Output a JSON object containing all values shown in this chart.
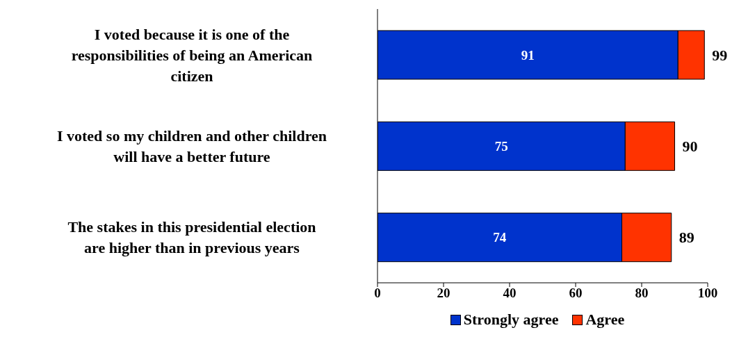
{
  "chart_data": {
    "type": "bar",
    "orientation": "horizontal",
    "stacked": true,
    "categories": [
      "I voted because it is one of the responsibilities of being an American citizen",
      "I voted so my children and other children will have a better future",
      "The stakes in this presidential election are higher than in previous years"
    ],
    "series": [
      {
        "name": "Strongly agree",
        "color": "#0033cc",
        "values": [
          91,
          75,
          74
        ],
        "value_labels": [
          "91",
          "75",
          "74"
        ]
      },
      {
        "name": "Agree",
        "color": "#ff3300",
        "values": [
          8,
          15,
          15
        ]
      }
    ],
    "totals": [
      "99",
      "90",
      "89"
    ],
    "xlim": [
      0,
      100
    ],
    "xticks": [
      0,
      20,
      40,
      60,
      80,
      100
    ],
    "grid": false,
    "legend": "bottom"
  }
}
